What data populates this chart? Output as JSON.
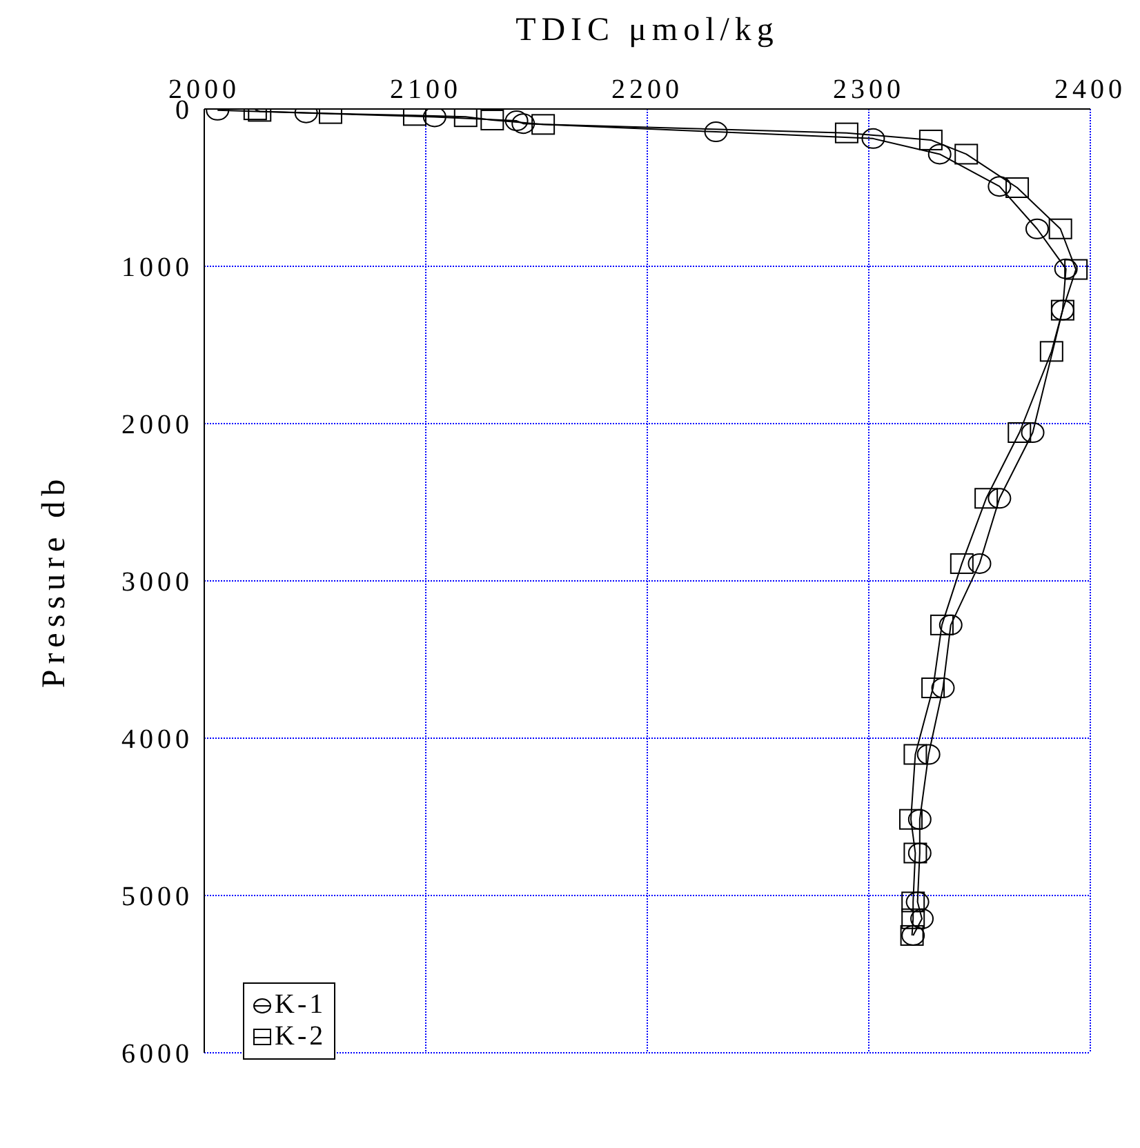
{
  "chart_data": {
    "type": "line",
    "xlabel": "TDIC μmol/kg",
    "ylabel": "Pressure db",
    "xlim": [
      2000,
      2400
    ],
    "xticks": [
      2000,
      2100,
      2200,
      2300,
      2400
    ],
    "ylim": [
      6000,
      0
    ],
    "yticks": [
      0,
      1000,
      2000,
      3000,
      4000,
      5000,
      6000
    ],
    "grid": true,
    "legend": "bottom left",
    "line_style": "solid",
    "series": [
      {
        "name": "K-1",
        "color": "#000000",
        "marker": "circle",
        "x": [
          2006,
          2046,
          2104,
          2141,
          2144,
          2231,
          2302,
          2332,
          2359,
          2376,
          2389,
          2387.5,
          2374,
          2359,
          2350,
          2337,
          2333.5,
          2327,
          2323,
          2323,
          2322,
          2324,
          2320
        ],
        "values": [
          8,
          25,
          50,
          75,
          93,
          145,
          188,
          287,
          492,
          762,
          1016,
          1279,
          2057,
          2475,
          2890,
          3280,
          3680,
          4103,
          4516,
          4730,
          5041,
          5148,
          5254
        ]
      },
      {
        "name": "K-2",
        "color": "#000000",
        "marker": "square",
        "x": [
          2023,
          2025,
          2057,
          2095,
          2118,
          2130,
          2153,
          2290,
          2328,
          2344,
          2367,
          2386.5,
          2393.5,
          2387.5,
          2382.5,
          2368,
          2353,
          2342,
          2333,
          2329,
          2321,
          2319,
          2321,
          2320,
          2320,
          2319.5
        ],
        "values": [
          5,
          15,
          29,
          41,
          49,
          70,
          98,
          152,
          197,
          287,
          500,
          762,
          1020,
          1279,
          1541,
          2057,
          2475,
          2890,
          3280,
          3680,
          4103,
          4516,
          4730,
          5041,
          5148,
          5254
        ]
      }
    ]
  }
}
